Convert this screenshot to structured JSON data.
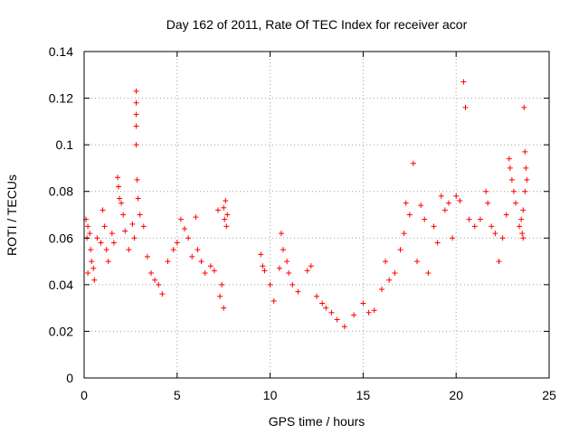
{
  "chart_data": {
    "type": "scatter",
    "title": "Day 162 of 2011, Rate Of TEC Index for receiver acor",
    "xlabel": "GPS time / hours",
    "ylabel": "ROTI / TECUs",
    "xlim": [
      0,
      25
    ],
    "ylim": [
      0,
      0.14
    ],
    "xticks": [
      0,
      5,
      10,
      15,
      20,
      25
    ],
    "yticks": [
      0,
      0.02,
      0.04,
      0.06,
      0.08,
      0.1,
      0.12,
      0.14
    ],
    "xtick_labels": [
      "0",
      "5",
      "10",
      "15",
      "20",
      "25"
    ],
    "ytick_labels": [
      "0",
      "0.02",
      "0.04",
      "0.06",
      "0.08",
      "0.1",
      "0.12",
      "0.14"
    ],
    "grid": true,
    "legend": "none",
    "marker": "plus",
    "series": [
      {
        "color": "#ff0000",
        "points": [
          [
            0.1,
            0.068
          ],
          [
            0.2,
            0.065
          ],
          [
            0.15,
            0.06
          ],
          [
            0.3,
            0.062
          ],
          [
            0.35,
            0.055
          ],
          [
            0.4,
            0.05
          ],
          [
            0.5,
            0.047
          ],
          [
            0.2,
            0.045
          ],
          [
            0.55,
            0.042
          ],
          [
            0.7,
            0.06
          ],
          [
            0.9,
            0.058
          ],
          [
            1.0,
            0.072
          ],
          [
            1.1,
            0.065
          ],
          [
            1.2,
            0.055
          ],
          [
            1.3,
            0.05
          ],
          [
            1.5,
            0.062
          ],
          [
            1.6,
            0.058
          ],
          [
            1.8,
            0.086
          ],
          [
            1.85,
            0.082
          ],
          [
            1.9,
            0.077
          ],
          [
            2.0,
            0.075
          ],
          [
            2.1,
            0.07
          ],
          [
            2.2,
            0.063
          ],
          [
            2.4,
            0.055
          ],
          [
            2.6,
            0.066
          ],
          [
            2.7,
            0.06
          ],
          [
            2.8,
            0.123
          ],
          [
            2.8,
            0.118
          ],
          [
            2.8,
            0.113
          ],
          [
            2.8,
            0.108
          ],
          [
            2.8,
            0.1
          ],
          [
            2.85,
            0.085
          ],
          [
            2.9,
            0.077
          ],
          [
            3.0,
            0.07
          ],
          [
            3.2,
            0.065
          ],
          [
            3.4,
            0.052
          ],
          [
            3.6,
            0.045
          ],
          [
            3.8,
            0.042
          ],
          [
            4.0,
            0.04
          ],
          [
            4.2,
            0.036
          ],
          [
            4.5,
            0.05
          ],
          [
            4.8,
            0.055
          ],
          [
            5.0,
            0.058
          ],
          [
            5.2,
            0.068
          ],
          [
            5.4,
            0.064
          ],
          [
            5.6,
            0.06
          ],
          [
            5.8,
            0.052
          ],
          [
            6.0,
            0.069
          ],
          [
            6.1,
            0.055
          ],
          [
            6.3,
            0.05
          ],
          [
            6.5,
            0.045
          ],
          [
            6.8,
            0.048
          ],
          [
            7.0,
            0.046
          ],
          [
            7.2,
            0.072
          ],
          [
            7.5,
            0.073
          ],
          [
            7.6,
            0.076
          ],
          [
            7.7,
            0.07
          ],
          [
            7.55,
            0.068
          ],
          [
            7.65,
            0.065
          ],
          [
            7.4,
            0.04
          ],
          [
            7.3,
            0.035
          ],
          [
            7.5,
            0.03
          ],
          [
            9.5,
            0.053
          ],
          [
            9.6,
            0.048
          ],
          [
            9.7,
            0.046
          ],
          [
            10.0,
            0.04
          ],
          [
            10.2,
            0.033
          ],
          [
            10.5,
            0.047
          ],
          [
            10.6,
            0.062
          ],
          [
            10.7,
            0.055
          ],
          [
            10.9,
            0.05
          ],
          [
            11.0,
            0.045
          ],
          [
            11.2,
            0.04
          ],
          [
            11.5,
            0.037
          ],
          [
            12.0,
            0.046
          ],
          [
            12.2,
            0.048
          ],
          [
            12.5,
            0.035
          ],
          [
            12.8,
            0.032
          ],
          [
            13.0,
            0.03
          ],
          [
            13.3,
            0.028
          ],
          [
            13.6,
            0.025
          ],
          [
            14.0,
            0.022
          ],
          [
            14.5,
            0.027
          ],
          [
            15.0,
            0.032
          ],
          [
            15.3,
            0.028
          ],
          [
            15.6,
            0.029
          ],
          [
            16.0,
            0.038
          ],
          [
            16.2,
            0.05
          ],
          [
            16.4,
            0.042
          ],
          [
            16.7,
            0.045
          ],
          [
            17.0,
            0.055
          ],
          [
            17.2,
            0.062
          ],
          [
            17.3,
            0.075
          ],
          [
            17.5,
            0.07
          ],
          [
            17.7,
            0.092
          ],
          [
            17.9,
            0.05
          ],
          [
            18.1,
            0.074
          ],
          [
            18.3,
            0.068
          ],
          [
            18.5,
            0.045
          ],
          [
            18.8,
            0.065
          ],
          [
            19.0,
            0.058
          ],
          [
            19.2,
            0.078
          ],
          [
            19.4,
            0.072
          ],
          [
            19.6,
            0.075
          ],
          [
            19.8,
            0.06
          ],
          [
            20.0,
            0.078
          ],
          [
            20.2,
            0.076
          ],
          [
            20.4,
            0.127
          ],
          [
            20.5,
            0.116
          ],
          [
            20.7,
            0.068
          ],
          [
            21.0,
            0.065
          ],
          [
            21.3,
            0.068
          ],
          [
            21.6,
            0.08
          ],
          [
            21.7,
            0.075
          ],
          [
            21.9,
            0.065
          ],
          [
            22.1,
            0.062
          ],
          [
            22.3,
            0.05
          ],
          [
            22.5,
            0.06
          ],
          [
            22.7,
            0.07
          ],
          [
            22.85,
            0.094
          ],
          [
            22.9,
            0.09
          ],
          [
            23.0,
            0.085
          ],
          [
            23.1,
            0.08
          ],
          [
            23.2,
            0.075
          ],
          [
            23.4,
            0.065
          ],
          [
            23.6,
            0.06
          ],
          [
            23.65,
            0.116
          ],
          [
            23.7,
            0.097
          ],
          [
            23.75,
            0.09
          ],
          [
            23.8,
            0.085
          ],
          [
            23.7,
            0.08
          ],
          [
            23.6,
            0.072
          ],
          [
            23.5,
            0.068
          ],
          [
            23.55,
            0.062
          ]
        ]
      }
    ]
  }
}
